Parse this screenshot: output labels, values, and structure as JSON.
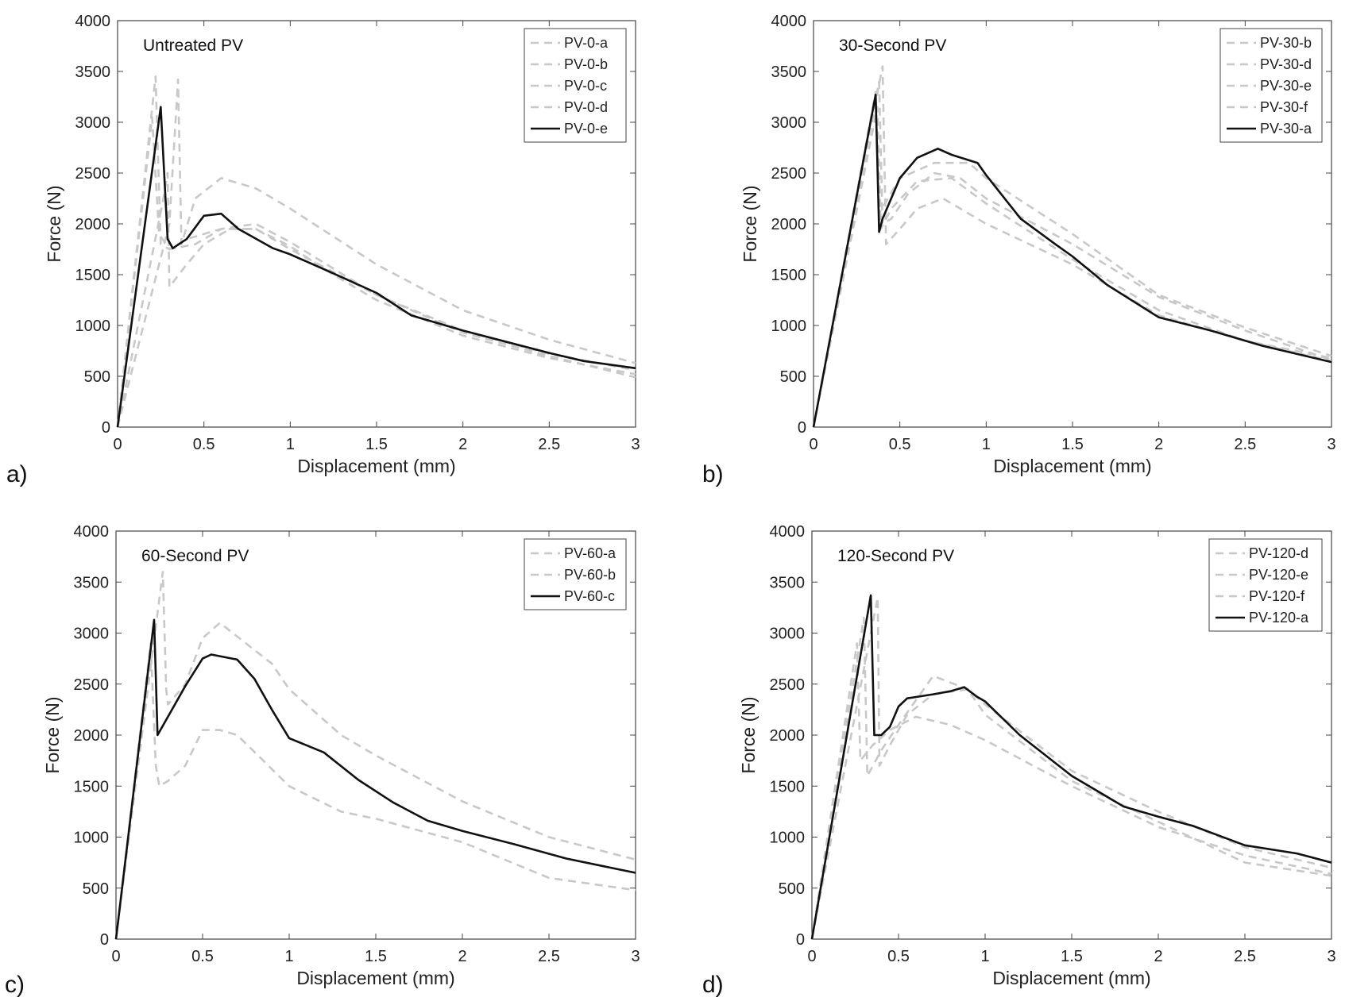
{
  "chart_data": [
    {
      "type": "line",
      "letter": "a)",
      "title": "Untreated PV",
      "xlabel": "Displacement (mm)",
      "ylabel": "Force (N)",
      "xlim": [
        0,
        3
      ],
      "ylim": [
        0,
        4000
      ],
      "xticks": [
        "0",
        "0.5",
        "1",
        "1.5",
        "2",
        "2.5",
        "3"
      ],
      "yticks": [
        "0",
        "500",
        "1000",
        "1500",
        "2000",
        "2500",
        "3000",
        "3500",
        "4000"
      ],
      "legend": [
        "PV-0-a",
        "PV-0-b",
        "PV-0-c",
        "PV-0-d",
        "PV-0-e"
      ],
      "series": [
        {
          "name": "PV-0-a",
          "style": "dashed",
          "x": [
            0,
            0.22,
            0.25,
            0.3,
            0.4,
            0.6,
            0.8,
            1.0,
            1.2,
            1.5,
            2.0,
            2.5,
            3.0
          ],
          "y": [
            0,
            3450,
            1800,
            1750,
            1850,
            1950,
            1950,
            1780,
            1550,
            1250,
            900,
            680,
            520
          ]
        },
        {
          "name": "PV-0-b",
          "style": "dashed",
          "x": [
            0,
            0.2,
            0.24,
            0.3,
            0.45,
            0.6,
            0.8,
            1.0,
            1.5,
            2.0,
            2.5,
            3.0
          ],
          "y": [
            0,
            3050,
            1900,
            1750,
            1800,
            1950,
            2000,
            1820,
            1300,
            930,
            700,
            490
          ]
        },
        {
          "name": "PV-0-c",
          "style": "dashed",
          "x": [
            0,
            0.3,
            0.35,
            0.37,
            0.45,
            0.6,
            0.8,
            1.0,
            1.5,
            2.0,
            2.5,
            3.0
          ],
          "y": [
            0,
            2000,
            3420,
            1800,
            2250,
            2450,
            2350,
            2150,
            1600,
            1150,
            860,
            630
          ]
        },
        {
          "name": "PV-0-d",
          "style": "dashed",
          "x": [
            0,
            0.26,
            0.29,
            0.3,
            0.4,
            0.5,
            0.65,
            0.8,
            1.0,
            1.5,
            2.0,
            2.5,
            3.0
          ],
          "y": [
            0,
            2200,
            2500,
            1380,
            1600,
            1800,
            1950,
            1950,
            1750,
            1300,
            950,
            720,
            560
          ]
        },
        {
          "name": "PV-0-e",
          "style": "solid",
          "x": [
            0,
            0.25,
            0.29,
            0.32,
            0.4,
            0.5,
            0.6,
            0.7,
            0.9,
            1.0,
            1.2,
            1.5,
            1.7,
            2.0,
            2.5,
            2.7,
            3.0
          ],
          "y": [
            0,
            3150,
            1850,
            1760,
            1850,
            2080,
            2100,
            1950,
            1760,
            1700,
            1550,
            1320,
            1100,
            950,
            730,
            650,
            580
          ]
        }
      ]
    },
    {
      "type": "line",
      "letter": "b)",
      "title": "30-Second PV",
      "xlabel": "Displacement (mm)",
      "ylabel": "Force (N)",
      "xlim": [
        0,
        3
      ],
      "ylim": [
        0,
        4000
      ],
      "xticks": [
        "0",
        "0.5",
        "1",
        "1.5",
        "2",
        "2.5",
        "3"
      ],
      "yticks": [
        "0",
        "500",
        "1000",
        "1500",
        "2000",
        "2500",
        "3000",
        "3500",
        "4000"
      ],
      "legend": [
        "PV-30-b",
        "PV-30-d",
        "PV-30-e",
        "PV-30-f",
        "PV-30-a"
      ],
      "series": [
        {
          "name": "PV-30-b",
          "style": "dashed",
          "x": [
            0,
            0.38,
            0.4,
            0.45,
            0.55,
            0.7,
            0.85,
            1.0,
            1.5,
            2.0,
            2.5,
            3.0
          ],
          "y": [
            0,
            3400,
            2000,
            2050,
            2300,
            2500,
            2450,
            2250,
            1800,
            1280,
            950,
            660
          ]
        },
        {
          "name": "PV-30-d",
          "style": "dashed",
          "x": [
            0,
            0.4,
            0.42,
            0.5,
            0.6,
            0.75,
            0.9,
            1.0,
            1.5,
            2.0,
            2.5,
            3.0
          ],
          "y": [
            0,
            3550,
            1800,
            1950,
            2150,
            2250,
            2100,
            2000,
            1600,
            1100,
            850,
            650
          ]
        },
        {
          "name": "PV-30-e",
          "style": "dashed",
          "x": [
            0,
            0.37,
            0.39,
            0.45,
            0.6,
            0.8,
            1.0,
            1.5,
            2.0,
            2.5,
            3.0
          ],
          "y": [
            0,
            3150,
            1950,
            2150,
            2420,
            2450,
            2200,
            1650,
            1150,
            850,
            680
          ]
        },
        {
          "name": "PV-30-f",
          "style": "dashed",
          "x": [
            0,
            0.36,
            0.38,
            0.5,
            0.7,
            0.9,
            1.0,
            1.5,
            2.0,
            2.5,
            3.0
          ],
          "y": [
            0,
            3300,
            2100,
            2450,
            2600,
            2600,
            2450,
            1900,
            1300,
            980,
            700
          ]
        },
        {
          "name": "PV-30-a",
          "style": "solid",
          "x": [
            0,
            0.36,
            0.38,
            0.4,
            0.5,
            0.6,
            0.72,
            0.8,
            0.95,
            1.0,
            1.2,
            1.4,
            1.5,
            1.7,
            2.0,
            2.3,
            2.6,
            3.0
          ],
          "y": [
            0,
            3270,
            1920,
            2050,
            2450,
            2650,
            2740,
            2680,
            2600,
            2480,
            2050,
            1800,
            1680,
            1400,
            1080,
            950,
            800,
            640
          ]
        }
      ]
    },
    {
      "type": "line",
      "letter": "c)",
      "title": "60-Second PV",
      "xlabel": "Displacement (mm)",
      "ylabel": "Force (N)",
      "xlim": [
        0,
        3
      ],
      "ylim": [
        0,
        4000
      ],
      "xticks": [
        "0",
        "0.5",
        "1",
        "1.5",
        "2",
        "2.5",
        "3"
      ],
      "yticks": [
        "0",
        "500",
        "1000",
        "1500",
        "2000",
        "2500",
        "3000",
        "3500",
        "4000"
      ],
      "legend": [
        "PV-60-a",
        "PV-60-b",
        "PV-60-c"
      ],
      "series": [
        {
          "name": "PV-60-a",
          "style": "dashed",
          "x": [
            0,
            0.2,
            0.23,
            0.25,
            0.3,
            0.4,
            0.5,
            0.6,
            0.7,
            0.85,
            1.0,
            1.3,
            1.5,
            2.0,
            2.5,
            3.0
          ],
          "y": [
            0,
            2900,
            1700,
            1500,
            1550,
            1700,
            2050,
            2050,
            2000,
            1750,
            1500,
            1250,
            1180,
            950,
            600,
            480
          ]
        },
        {
          "name": "PV-60-b",
          "style": "dashed",
          "x": [
            0,
            0.27,
            0.29,
            0.3,
            0.4,
            0.5,
            0.6,
            0.75,
            0.9,
            1.0,
            1.3,
            1.5,
            2.0,
            2.5,
            3.0
          ],
          "y": [
            0,
            3600,
            2450,
            2300,
            2500,
            2950,
            3100,
            2900,
            2700,
            2450,
            2000,
            1800,
            1350,
            1000,
            780
          ]
        },
        {
          "name": "PV-60-c",
          "style": "solid",
          "x": [
            0,
            0.22,
            0.24,
            0.3,
            0.4,
            0.5,
            0.55,
            0.7,
            0.8,
            0.9,
            1.0,
            1.2,
            1.4,
            1.6,
            1.8,
            2.0,
            2.3,
            2.6,
            3.0
          ],
          "y": [
            0,
            3130,
            2000,
            2180,
            2480,
            2750,
            2790,
            2740,
            2550,
            2250,
            1970,
            1830,
            1560,
            1340,
            1160,
            1060,
            930,
            790,
            650
          ]
        }
      ]
    },
    {
      "type": "line",
      "letter": "d)",
      "title": "120-Second PV",
      "xlabel": "Displacement (mm)",
      "ylabel": "Force (N)",
      "xlim": [
        0,
        3
      ],
      "ylim": [
        0,
        4000
      ],
      "xticks": [
        "0",
        "0.5",
        "1",
        "1.5",
        "2",
        "2.5",
        "3"
      ],
      "yticks": [
        "0",
        "500",
        "1000",
        "1500",
        "2000",
        "2500",
        "3000",
        "3500",
        "4000"
      ],
      "legend": [
        "PV-120-d",
        "PV-120-e",
        "PV-120-f",
        "PV-120-a"
      ],
      "series": [
        {
          "name": "PV-120-d",
          "style": "dashed",
          "x": [
            0,
            0.3,
            0.32,
            0.4,
            0.5,
            0.7,
            0.9,
            1.0,
            1.5,
            2.0,
            2.5,
            3.0
          ],
          "y": [
            0,
            3150,
            1600,
            1850,
            2100,
            2580,
            2450,
            2300,
            1650,
            1250,
            900,
            700
          ]
        },
        {
          "name": "PV-120-e",
          "style": "dashed",
          "x": [
            0,
            0.26,
            0.28,
            0.35,
            0.45,
            0.6,
            0.8,
            1.0,
            1.5,
            2.0,
            2.5,
            3.0
          ],
          "y": [
            0,
            2900,
            1750,
            1900,
            2050,
            2180,
            2100,
            1950,
            1500,
            1100,
            820,
            640
          ]
        },
        {
          "name": "PV-120-f",
          "style": "dashed",
          "x": [
            0,
            0.38,
            0.39,
            0.45,
            0.55,
            0.7,
            0.9,
            1.0,
            1.5,
            2.0,
            2.5,
            3.0
          ],
          "y": [
            0,
            3350,
            1700,
            1900,
            2200,
            2400,
            2450,
            2200,
            1550,
            1150,
            750,
            620
          ]
        },
        {
          "name": "PV-120-a",
          "style": "solid",
          "x": [
            0,
            0.34,
            0.36,
            0.4,
            0.45,
            0.5,
            0.55,
            0.7,
            0.8,
            0.88,
            0.95,
            1.0,
            1.2,
            1.5,
            1.8,
            2.0,
            2.2,
            2.5,
            2.8,
            3.0
          ],
          "y": [
            0,
            3370,
            2000,
            2000,
            2080,
            2280,
            2360,
            2400,
            2430,
            2470,
            2380,
            2330,
            2000,
            1600,
            1300,
            1200,
            1110,
            920,
            840,
            750
          ]
        }
      ]
    }
  ]
}
